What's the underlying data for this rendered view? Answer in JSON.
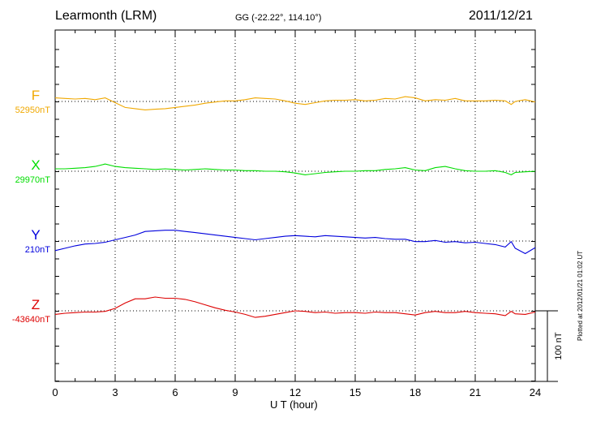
{
  "header": {
    "station": "Learmonth (LRM)",
    "coords": "GG (-22.22°, 114.10°)",
    "date": "2011/12/21"
  },
  "footer": {
    "plotted_note": "Plotted at 2012/01/21 01:02 UT"
  },
  "chart_data": {
    "type": "line",
    "xlabel": "U T (hour)",
    "xlim": [
      0,
      24
    ],
    "x_ticks": [
      "0",
      "3",
      "6",
      "9",
      "12",
      "15",
      "18",
      "21",
      "24"
    ],
    "scale_bar_label": "100 nT",
    "scale_bar_nT": 100,
    "grid": true,
    "x_hours": [
      0,
      0.5,
      1,
      1.5,
      2,
      2.5,
      3,
      3.5,
      4,
      4.5,
      5,
      5.5,
      6,
      6.5,
      7,
      7.5,
      8,
      8.5,
      9,
      9.5,
      10,
      10.5,
      11,
      11.5,
      12,
      12.5,
      13,
      13.5,
      14,
      14.5,
      15,
      15.5,
      16,
      16.5,
      17,
      17.5,
      18,
      18.5,
      19,
      19.5,
      20,
      20.5,
      21,
      21.5,
      22,
      22.5,
      22.8,
      23,
      23.5,
      24
    ],
    "series": [
      {
        "name": "F",
        "baseline_label": "52950nT",
        "color": "#f0a800",
        "values_nT": [
          6,
          5,
          4,
          5,
          3,
          6,
          -2,
          -10,
          -12,
          -14,
          -13,
          -12,
          -10,
          -8,
          -6,
          -3,
          -1,
          1,
          1,
          3,
          6,
          5,
          4,
          1,
          -3,
          -5,
          -2,
          1,
          2,
          2,
          3,
          1,
          2,
          5,
          4,
          8,
          6,
          1,
          3,
          2,
          5,
          1,
          1,
          1,
          2,
          1,
          -5,
          0,
          3,
          -1
        ]
      },
      {
        "name": "X",
        "baseline_label": "29970nT",
        "color": "#00dd00",
        "values_nT": [
          4,
          4,
          5,
          6,
          8,
          12,
          8,
          6,
          5,
          4,
          3,
          4,
          3,
          2,
          3,
          4,
          3,
          2,
          2,
          1,
          1,
          0,
          0,
          -1,
          -3,
          -6,
          -4,
          -2,
          -1,
          0,
          0,
          1,
          1,
          3,
          4,
          6,
          2,
          1,
          6,
          8,
          4,
          1,
          0,
          0,
          1,
          -2,
          -6,
          -2,
          -1,
          0
        ]
      },
      {
        "name": "Y",
        "baseline_label": "210nT",
        "color": "#0000dd",
        "values_nT": [
          -16,
          -12,
          -8,
          -5,
          -4,
          -2,
          2,
          6,
          10,
          16,
          17,
          18,
          18,
          16,
          14,
          12,
          10,
          8,
          6,
          4,
          2,
          4,
          6,
          8,
          9,
          8,
          7,
          9,
          8,
          7,
          6,
          5,
          6,
          4,
          3,
          3,
          -1,
          -1,
          1,
          -2,
          -1,
          -3,
          -2,
          -4,
          -6,
          -10,
          -1,
          -12,
          -21,
          -11
        ]
      },
      {
        "name": "Z",
        "baseline_label": "-43640nT",
        "color": "#dd0000",
        "values_nT": [
          -6,
          -4,
          -3,
          -2,
          -2,
          -1,
          4,
          13,
          20,
          20,
          23,
          21,
          21,
          19,
          15,
          10,
          5,
          1,
          -2,
          -6,
          -11,
          -9,
          -6,
          -3,
          0,
          -1,
          -3,
          -2,
          -4,
          -3,
          -3,
          -4,
          -2,
          -3,
          -3,
          -5,
          -7,
          -3,
          -1,
          -3,
          -3,
          -1,
          -3,
          -4,
          -5,
          -8,
          -1,
          -5,
          -6,
          -2
        ]
      }
    ]
  }
}
